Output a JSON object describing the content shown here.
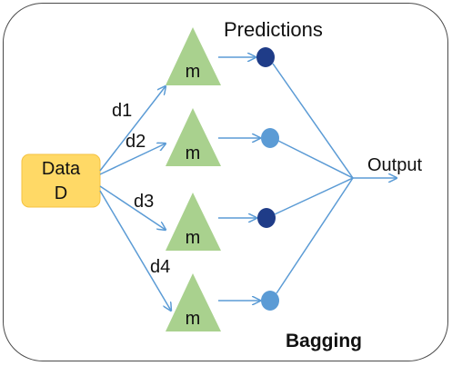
{
  "diagram": {
    "data_box": {
      "line1": "Data",
      "line2": "D"
    },
    "subsets": [
      "d1",
      "d2",
      "d3",
      "d4"
    ],
    "models": [
      {
        "label": "m"
      },
      {
        "label": "m"
      },
      {
        "label": "m"
      },
      {
        "label": "m"
      }
    ],
    "predictions_label": "Predictions",
    "predictions": [
      {
        "shade": "dark"
      },
      {
        "shade": "light"
      },
      {
        "shade": "dark"
      },
      {
        "shade": "light"
      }
    ],
    "output_label": "Output",
    "method_label": "Bagging"
  },
  "colors": {
    "frame_border": "#4a4a4a",
    "data_box_fill": "#FFD966",
    "data_box_stroke": "#F5C242",
    "model_fill": "#A9D18E",
    "arrow": "#5B9BD5",
    "prediction_dark": "#1F3C88",
    "prediction_light": "#5B9BD5"
  }
}
